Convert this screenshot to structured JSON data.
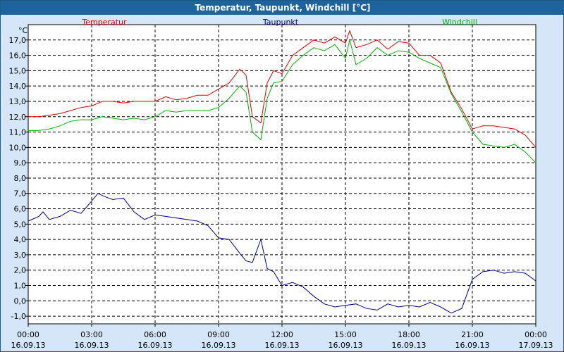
{
  "window": {
    "title": "Temperatur, Taupunkt, Windchill [°C]"
  },
  "colors": {
    "temperatur": "#e00000",
    "taupunkt": "#00008b",
    "windchill": "#00b000",
    "frame_bg": "#d4e6f7",
    "title_bg": "#1f639c"
  },
  "chart_data": {
    "type": "line",
    "title": "Temperatur, Taupunkt, Windchill [°C]",
    "ylabel": "°C",
    "ylim": [
      -1.5,
      18.0
    ],
    "xlim": [
      0,
      24
    ],
    "y_ticks": [
      "-1,0",
      "0,0",
      "1,0",
      "2,0",
      "3,0",
      "4,0",
      "5,0",
      "6,0",
      "7,0",
      "8,0",
      "9,0",
      "10,0",
      "11,0",
      "12,0",
      "13,0",
      "14,0",
      "15,0",
      "16,0",
      "17,0"
    ],
    "y_tick_values": [
      -1,
      0,
      1,
      2,
      3,
      4,
      5,
      6,
      7,
      8,
      9,
      10,
      11,
      12,
      13,
      14,
      15,
      16,
      17
    ],
    "x_ticks": [
      {
        "time": "00:00",
        "date": "16.09.13",
        "hour": 0
      },
      {
        "time": "03:00",
        "date": "16.09.13",
        "hour": 3
      },
      {
        "time": "06:00",
        "date": "16.09.13",
        "hour": 6
      },
      {
        "time": "09:00",
        "date": "16.09.13",
        "hour": 9
      },
      {
        "time": "12:00",
        "date": "16.09.13",
        "hour": 12
      },
      {
        "time": "15:00",
        "date": "16.09.13",
        "hour": 15
      },
      {
        "time": "18:00",
        "date": "16.09.13",
        "hour": 18
      },
      {
        "time": "21:00",
        "date": "16.09.13",
        "hour": 21
      },
      {
        "time": "00:00",
        "date": "17.09.13",
        "hour": 24
      }
    ],
    "series": [
      {
        "name": "Temperatur",
        "color": "#e00000",
        "x": [
          0,
          0.5,
          1,
          1.5,
          2,
          2.5,
          3,
          3.5,
          4,
          4.5,
          5,
          5.5,
          6,
          6.5,
          7,
          7.5,
          8,
          8.5,
          9,
          9.5,
          10,
          10.3,
          10.6,
          11,
          11.3,
          11.6,
          12,
          12.5,
          13,
          13.5,
          14,
          14.5,
          15,
          15.2,
          15.5,
          16,
          16.5,
          17,
          17.5,
          18,
          18.5,
          19,
          19.5,
          20,
          20.5,
          21,
          21.5,
          22,
          22.5,
          23,
          23.5,
          24
        ],
        "values": [
          12.0,
          12.0,
          12.1,
          12.2,
          12.4,
          12.6,
          12.7,
          13.0,
          13.0,
          12.9,
          13.0,
          13.0,
          13.0,
          13.3,
          13.1,
          13.2,
          13.4,
          13.4,
          13.8,
          14.2,
          15.1,
          14.7,
          12.0,
          11.6,
          14.2,
          15.0,
          14.8,
          16.0,
          16.5,
          17.0,
          16.8,
          17.2,
          16.8,
          17.6,
          16.5,
          16.7,
          17.0,
          16.4,
          16.9,
          16.8,
          16.0,
          16.0,
          15.5,
          13.6,
          12.5,
          11.2,
          11.4,
          11.4,
          11.3,
          11.2,
          10.8,
          10.0
        ]
      },
      {
        "name": "Taupunkt",
        "color": "#00008b",
        "x": [
          0,
          0.5,
          0.7,
          1,
          1.5,
          2,
          2.5,
          3,
          3.3,
          3.6,
          4,
          4.5,
          5,
          5.5,
          6,
          6.5,
          7,
          7.5,
          8,
          8.5,
          9,
          9.5,
          10,
          10.3,
          10.6,
          11,
          11.3,
          11.6,
          12,
          12.5,
          13,
          13.5,
          14,
          14.5,
          15,
          15.5,
          16,
          16.5,
          17,
          17.5,
          18,
          18.5,
          19,
          19.5,
          20,
          20.5,
          21,
          21.5,
          22,
          22.5,
          23,
          23.5,
          24
        ],
        "values": [
          5.2,
          5.5,
          5.8,
          5.3,
          5.5,
          5.9,
          5.7,
          6.5,
          7.0,
          6.8,
          6.6,
          6.7,
          5.8,
          5.3,
          5.6,
          5.5,
          5.4,
          5.3,
          5.2,
          4.9,
          4.1,
          4.0,
          3.1,
          2.6,
          2.5,
          4.0,
          2.1,
          1.9,
          1.0,
          1.2,
          0.9,
          0.3,
          -0.2,
          -0.4,
          -0.3,
          -0.2,
          -0.5,
          -0.6,
          -0.2,
          -0.4,
          -0.3,
          -0.4,
          -0.1,
          -0.4,
          -0.8,
          -0.5,
          1.4,
          1.9,
          2.0,
          1.8,
          1.9,
          1.8,
          1.3
        ]
      },
      {
        "name": "Windchill",
        "color": "#00b000",
        "x": [
          0,
          0.5,
          1,
          1.5,
          2,
          2.5,
          3,
          3.5,
          4,
          4.5,
          5,
          5.5,
          6,
          6.5,
          7,
          7.5,
          8,
          8.5,
          9,
          9.5,
          10,
          10.3,
          10.6,
          11,
          11.3,
          11.6,
          12,
          12.5,
          13,
          13.5,
          14,
          14.5,
          15,
          15.2,
          15.5,
          16,
          16.5,
          17,
          17.5,
          18,
          18.5,
          19,
          19.5,
          20,
          20.5,
          21,
          21.5,
          22,
          22.5,
          23,
          23.5,
          24
        ],
        "values": [
          11.1,
          11.1,
          11.2,
          11.4,
          11.7,
          11.8,
          11.8,
          12.0,
          11.9,
          11.8,
          11.9,
          11.8,
          12.0,
          12.4,
          12.3,
          12.4,
          12.4,
          12.4,
          12.6,
          13.2,
          14.0,
          13.6,
          11.0,
          10.5,
          13.2,
          14.2,
          14.3,
          15.4,
          16.0,
          16.5,
          16.3,
          16.7,
          15.8,
          17.0,
          15.4,
          15.8,
          16.5,
          16.0,
          16.3,
          16.2,
          15.8,
          15.5,
          15.2,
          13.5,
          12.3,
          11.0,
          10.2,
          10.1,
          10.0,
          10.2,
          9.7,
          9.0
        ]
      }
    ]
  }
}
